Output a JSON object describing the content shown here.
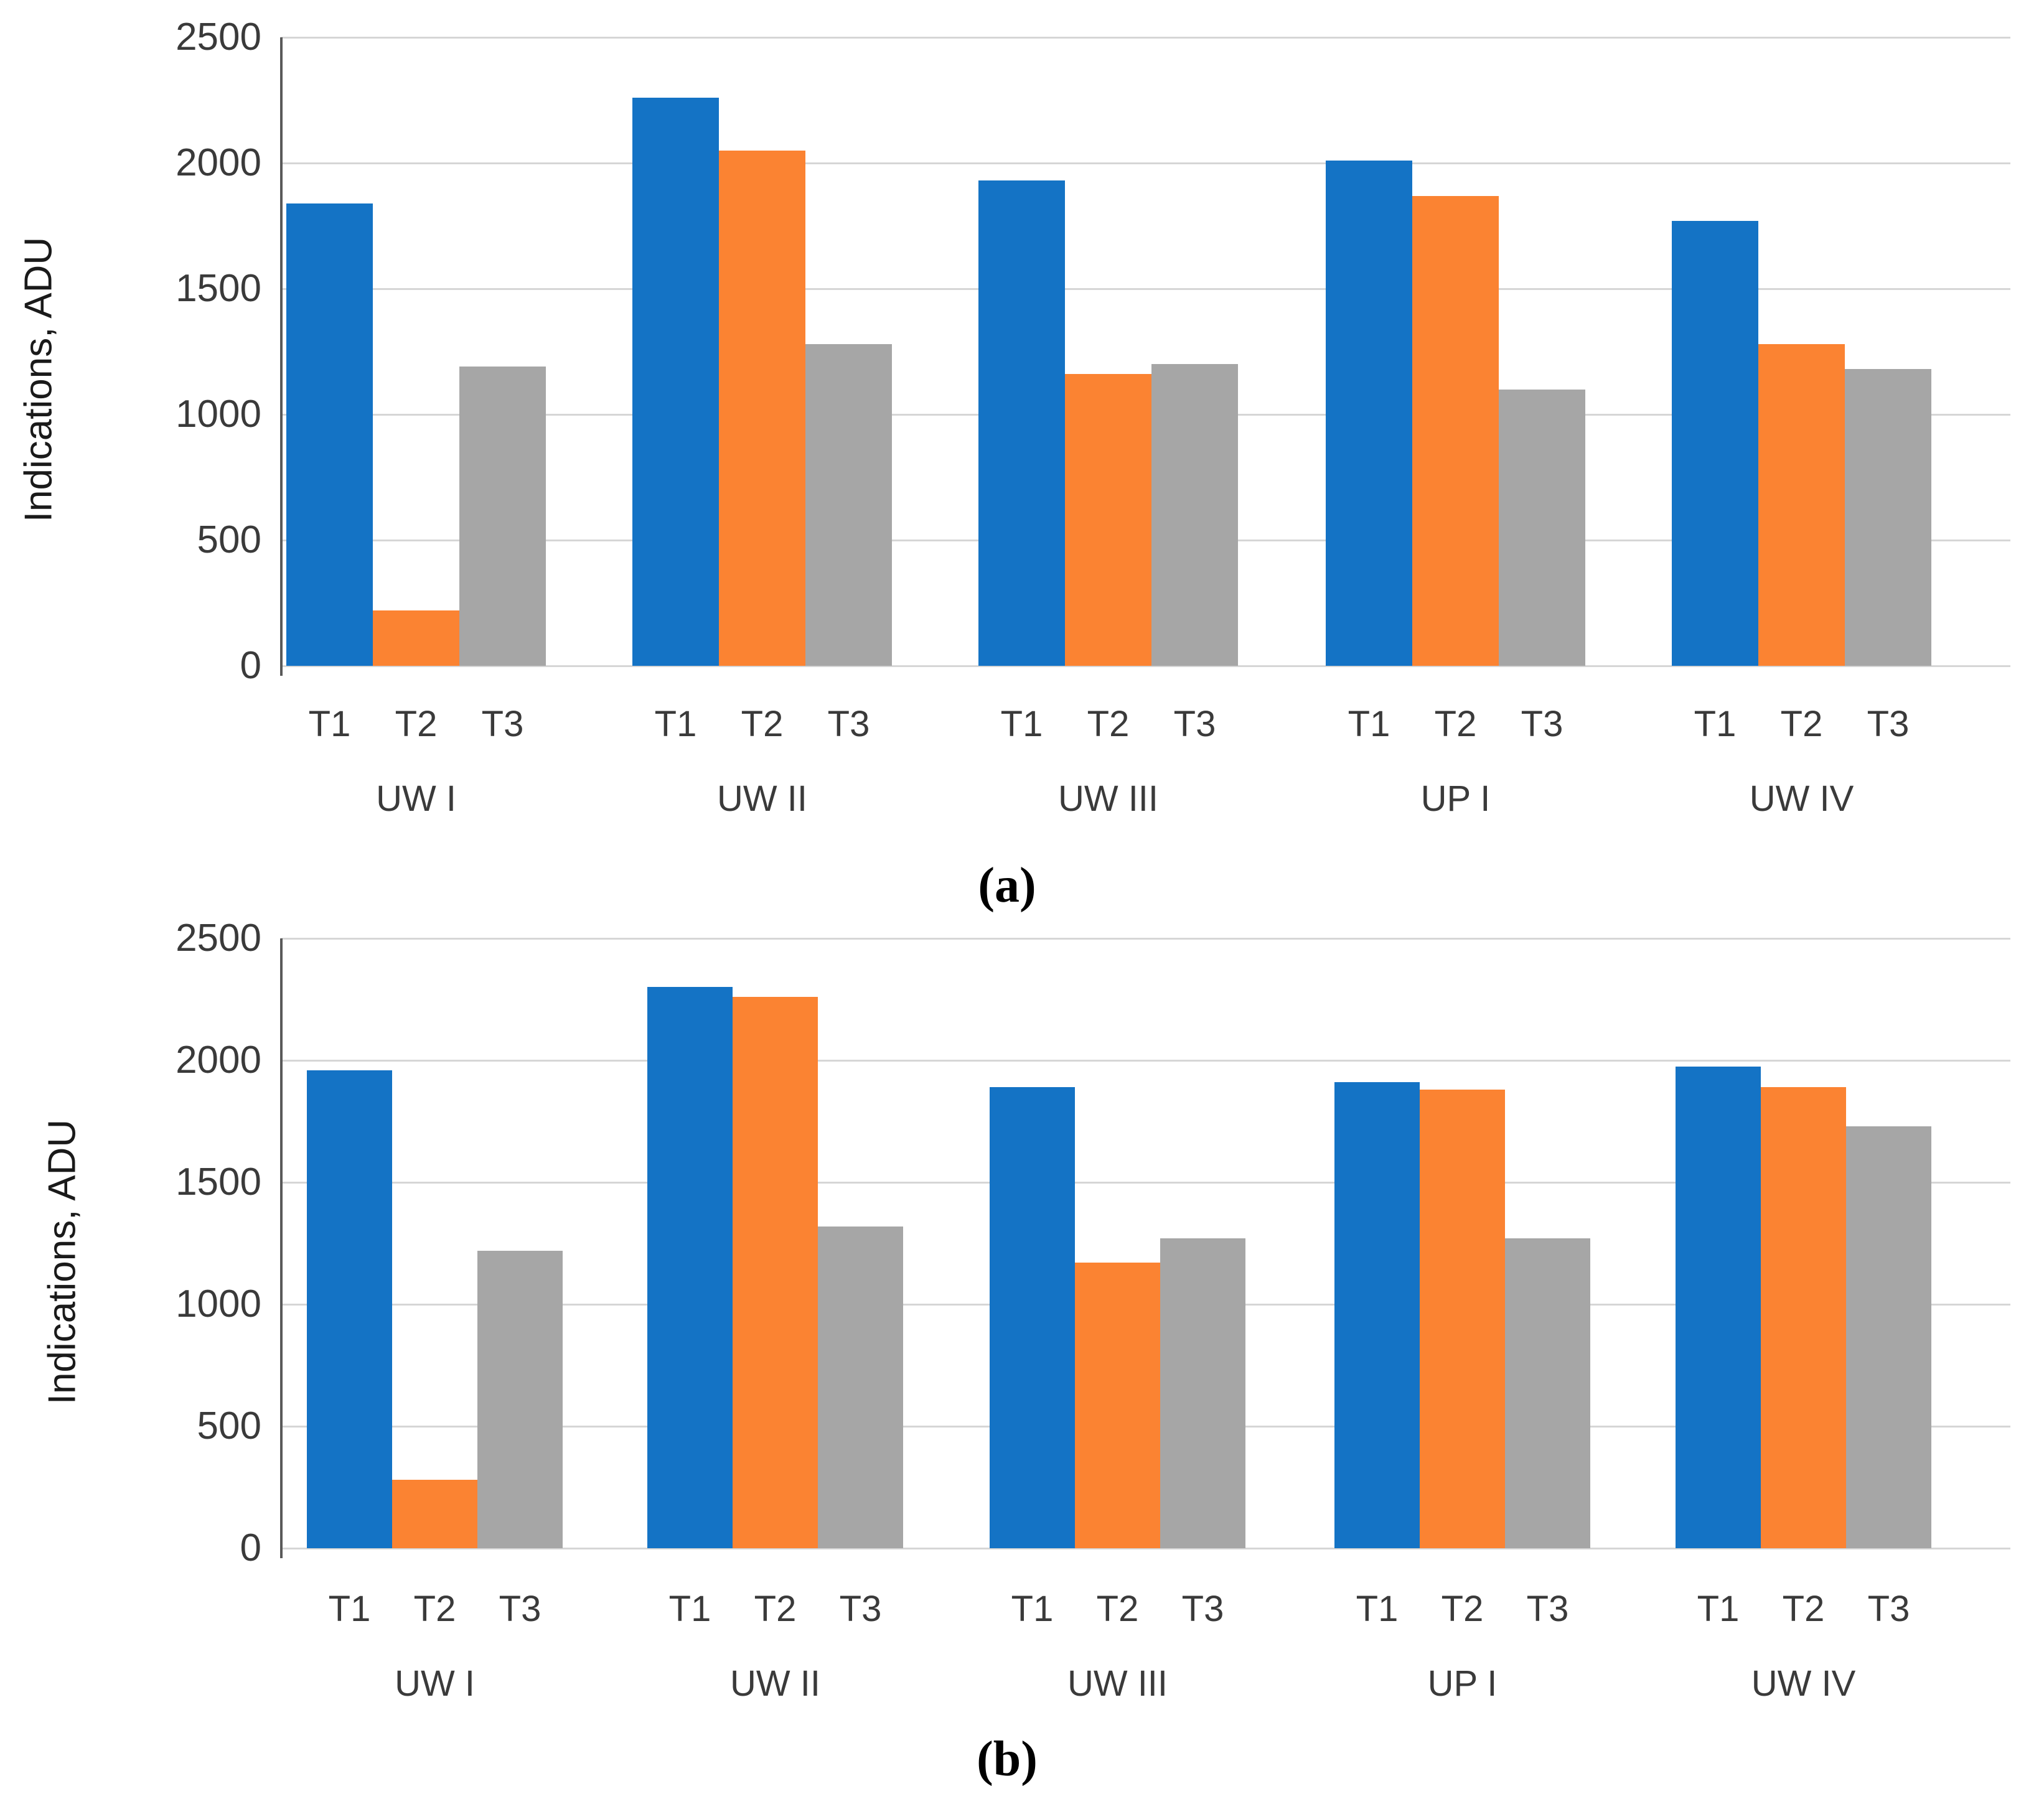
{
  "colors": {
    "t1_blue": "#1473C5",
    "t2_orange": "#FB8332",
    "t3_gray": "#A6A6A6",
    "gridline": "#D6D6D6",
    "axis_line": "#595959",
    "text": "#3A3A3A"
  },
  "chart_data": [
    {
      "type": "bar",
      "panel": "a",
      "caption": "(a)",
      "title": "",
      "xlabel": "",
      "ylabel": "Indications, ADU",
      "ylim": [
        0,
        2500
      ],
      "yticks": [
        0,
        500,
        1000,
        1500,
        2000,
        2500
      ],
      "grid": true,
      "legend": "none",
      "categories": [
        "UW I",
        "UW II",
        "UW III",
        "UP I",
        "UW IV"
      ],
      "bar_labels": [
        "T1",
        "T2",
        "T3"
      ],
      "series": [
        {
          "name": "T1",
          "color": "#1473C5",
          "values": [
            1840,
            2260,
            1930,
            2010,
            1770
          ]
        },
        {
          "name": "T2",
          "color": "#FB8332",
          "values": [
            220,
            2050,
            1160,
            1870,
            1280
          ]
        },
        {
          "name": "T3",
          "color": "#A6A6A6",
          "values": [
            1190,
            1280,
            1200,
            1100,
            1180
          ]
        }
      ]
    },
    {
      "type": "bar",
      "panel": "b",
      "caption": "(b)",
      "title": "",
      "xlabel": "",
      "ylabel": "Indications, ADU",
      "ylim": [
        0,
        2500
      ],
      "yticks": [
        0,
        500,
        1000,
        1500,
        2000,
        2500
      ],
      "grid": true,
      "legend": "none",
      "categories": [
        "UW I",
        "UW II",
        "UW III",
        "UP I",
        "UW IV"
      ],
      "bar_labels": [
        "T1",
        "T2",
        "T3"
      ],
      "series": [
        {
          "name": "T1",
          "color": "#1473C5",
          "values": [
            1960,
            2300,
            1890,
            1910,
            1975
          ]
        },
        {
          "name": "T2",
          "color": "#FB8332",
          "values": [
            280,
            2260,
            1170,
            1880,
            1890
          ]
        },
        {
          "name": "T3",
          "color": "#A6A6A6",
          "values": [
            1220,
            1320,
            1270,
            1270,
            1730
          ]
        }
      ]
    }
  ]
}
